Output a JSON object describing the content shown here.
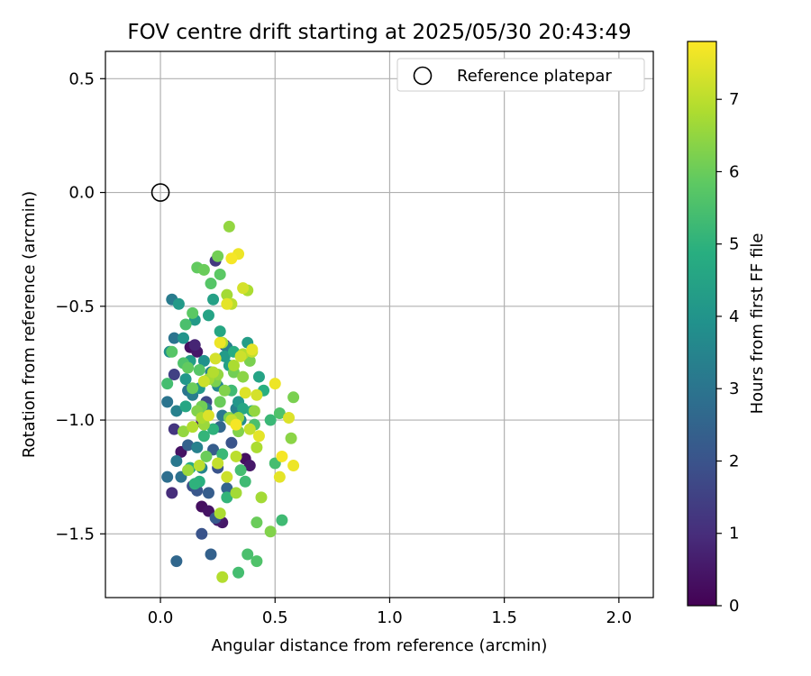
{
  "chart_data": {
    "type": "scatter",
    "title": "FOV centre drift starting at 2025/05/30 20:43:49",
    "xlabel": "Angular distance from reference (arcmin)",
    "ylabel": "Rotation from reference (arcmin)",
    "xlim": [
      -0.24,
      2.15
    ],
    "ylim": [
      -1.78,
      0.62
    ],
    "xticks": [
      0.0,
      0.5,
      1.0,
      1.5,
      2.0
    ],
    "xtick_labels": [
      "0.0",
      "0.5",
      "1.0",
      "1.5",
      "2.0"
    ],
    "yticks": [
      0.5,
      0.0,
      -0.5,
      -1.0,
      -1.5
    ],
    "ytick_labels": [
      "0.5",
      "0.0",
      "−0.5",
      "−1.0",
      "−1.5"
    ],
    "grid": true,
    "legend": {
      "position": "top-right",
      "entries": [
        "Reference platepar"
      ]
    },
    "reference_point": {
      "x": 0.0,
      "y": 0.0
    },
    "colorbar": {
      "label": "Hours from first FF file",
      "colormap": "viridis",
      "range": [
        0,
        7.8
      ],
      "ticks": [
        0,
        1,
        2,
        3,
        4,
        5,
        6,
        7
      ],
      "tick_labels": [
        "0",
        "1",
        "2",
        "3",
        "4",
        "5",
        "6",
        "7"
      ]
    },
    "points": [
      [
        0.13,
        -0.68,
        0.3
      ],
      [
        0.16,
        -0.7,
        0.5
      ],
      [
        0.18,
        -1.01,
        0.6
      ],
      [
        0.18,
        -1.38,
        0.3
      ],
      [
        0.21,
        -1.4,
        0.4
      ],
      [
        0.25,
        -1.44,
        0.6
      ],
      [
        0.27,
        -1.45,
        0.5
      ],
      [
        0.09,
        -1.14,
        0.4
      ],
      [
        0.05,
        -1.32,
        1.0
      ],
      [
        0.06,
        -1.04,
        1.2
      ],
      [
        0.15,
        -0.67,
        0.8
      ],
      [
        0.28,
        -0.67,
        0.9
      ],
      [
        0.37,
        -1.17,
        0.3
      ],
      [
        0.39,
        -1.2,
        0.5
      ],
      [
        0.24,
        -0.3,
        1.3
      ],
      [
        0.07,
        -1.62,
        2.6
      ],
      [
        0.18,
        -1.5,
        2.0
      ],
      [
        0.22,
        -1.59,
        2.4
      ],
      [
        0.24,
        -1.43,
        2.2
      ],
      [
        0.06,
        -0.8,
        1.5
      ],
      [
        0.14,
        -1.29,
        1.9
      ],
      [
        0.16,
        -1.31,
        2.1
      ],
      [
        0.21,
        -1.32,
        2.3
      ],
      [
        0.25,
        -1.21,
        2.0
      ],
      [
        0.29,
        -1.3,
        2.5
      ],
      [
        0.31,
        -1.1,
        2.0
      ],
      [
        0.2,
        -0.92,
        1.7
      ],
      [
        0.23,
        -1.13,
        2.3
      ],
      [
        0.26,
        -1.03,
        2.6
      ],
      [
        0.12,
        -1.11,
        2.4
      ],
      [
        0.09,
        -1.25,
        2.9
      ],
      [
        0.03,
        -1.25,
        2.8
      ],
      [
        0.03,
        -0.92,
        3.0
      ],
      [
        0.07,
        -1.18,
        3.1
      ],
      [
        0.05,
        -0.47,
        3.2
      ],
      [
        0.06,
        -0.64,
        3.0
      ],
      [
        0.12,
        -0.87,
        3.0
      ],
      [
        0.14,
        -0.89,
        3.3
      ],
      [
        0.16,
        -1.12,
        3.4
      ],
      [
        0.18,
        -1.21,
        3.5
      ],
      [
        0.2,
        -0.95,
        3.2
      ],
      [
        0.22,
        -0.79,
        3.4
      ],
      [
        0.25,
        -0.85,
        3.6
      ],
      [
        0.27,
        -0.98,
        3.1
      ],
      [
        0.29,
        -0.68,
        3.3
      ],
      [
        0.33,
        -0.95,
        3.4
      ],
      [
        0.35,
        -1.0,
        3.7
      ],
      [
        0.07,
        -0.96,
        3.4
      ],
      [
        0.04,
        -0.7,
        3.8
      ],
      [
        0.08,
        -0.49,
        4.2
      ],
      [
        0.1,
        -0.64,
        4.0
      ],
      [
        0.11,
        -0.82,
        4.1
      ],
      [
        0.13,
        -0.74,
        4.3
      ],
      [
        0.15,
        -0.56,
        4.2
      ],
      [
        0.17,
        -0.86,
        4.1
      ],
      [
        0.19,
        -0.74,
        3.9
      ],
      [
        0.21,
        -0.54,
        4.5
      ],
      [
        0.23,
        -0.47,
        4.4
      ],
      [
        0.26,
        -0.61,
        4.6
      ],
      [
        0.28,
        -0.72,
        4.2
      ],
      [
        0.3,
        -0.76,
        4.4
      ],
      [
        0.32,
        -0.7,
        4.8
      ],
      [
        0.34,
        -0.92,
        4.1
      ],
      [
        0.36,
        -0.95,
        4.6
      ],
      [
        0.38,
        -0.66,
        4.3
      ],
      [
        0.4,
        -0.96,
        4.7
      ],
      [
        0.43,
        -0.81,
        4.5
      ],
      [
        0.45,
        -0.87,
        4.9
      ],
      [
        0.11,
        -0.94,
        4.6
      ],
      [
        0.13,
        -1.21,
        4.8
      ],
      [
        0.15,
        -1.28,
        5.0
      ],
      [
        0.17,
        -1.27,
        4.9
      ],
      [
        0.19,
        -1.07,
        5.1
      ],
      [
        0.23,
        -1.04,
        5.0
      ],
      [
        0.27,
        -1.15,
        5.2
      ],
      [
        0.29,
        -1.34,
        5.1
      ],
      [
        0.31,
        -0.87,
        5.3
      ],
      [
        0.35,
        -1.22,
        5.4
      ],
      [
        0.37,
        -1.27,
        5.3
      ],
      [
        0.41,
        -1.02,
        5.5
      ],
      [
        0.48,
        -1.0,
        5.2
      ],
      [
        0.5,
        -1.19,
        5.4
      ],
      [
        0.52,
        -0.97,
        5.6
      ],
      [
        0.53,
        -1.44,
        5.3
      ],
      [
        0.38,
        -1.59,
        5.5
      ],
      [
        0.34,
        -1.67,
        5.4
      ],
      [
        0.42,
        -1.62,
        5.6
      ],
      [
        0.03,
        -0.84,
        5.4
      ],
      [
        0.05,
        -0.7,
        5.7
      ],
      [
        0.11,
        -0.58,
        5.5
      ],
      [
        0.14,
        -0.53,
        5.8
      ],
      [
        0.16,
        -0.33,
        5.9
      ],
      [
        0.19,
        -0.34,
        6.0
      ],
      [
        0.22,
        -0.4,
        5.7
      ],
      [
        0.25,
        -0.28,
        6.1
      ],
      [
        0.26,
        -0.36,
        5.8
      ],
      [
        0.1,
        -0.75,
        5.6
      ],
      [
        0.12,
        -0.77,
        5.9
      ],
      [
        0.14,
        -0.86,
        6.0
      ],
      [
        0.17,
        -0.78,
        5.7
      ],
      [
        0.18,
        -0.94,
        6.1
      ],
      [
        0.2,
        -1.16,
        6.0
      ],
      [
        0.24,
        -0.83,
        6.2
      ],
      [
        0.26,
        -0.92,
        6.0
      ],
      [
        0.28,
        -0.87,
        6.3
      ],
      [
        0.3,
        -0.99,
        6.2
      ],
      [
        0.32,
        -0.79,
        6.1
      ],
      [
        0.34,
        -1.05,
        6.3
      ],
      [
        0.36,
        -0.81,
        6.4
      ],
      [
        0.39,
        -0.74,
        6.2
      ],
      [
        0.41,
        -0.96,
        6.5
      ],
      [
        0.42,
        -1.45,
        6.0
      ],
      [
        0.48,
        -1.49,
        6.3
      ],
      [
        0.58,
        -0.9,
        6.2
      ],
      [
        0.57,
        -1.08,
        6.4
      ],
      [
        0.1,
        -1.05,
        6.5
      ],
      [
        0.12,
        -1.22,
        6.6
      ],
      [
        0.16,
        -0.96,
        6.3
      ],
      [
        0.18,
        -0.99,
        6.8
      ],
      [
        0.19,
        -1.02,
        6.6
      ],
      [
        0.21,
        -0.82,
        6.7
      ],
      [
        0.23,
        -0.79,
        6.9
      ],
      [
        0.25,
        -0.8,
        6.5
      ],
      [
        0.27,
        -0.66,
        6.8
      ],
      [
        0.29,
        -0.45,
        6.7
      ],
      [
        0.3,
        -0.15,
        6.5
      ],
      [
        0.31,
        -0.49,
        7.0
      ],
      [
        0.32,
        -0.76,
        6.8
      ],
      [
        0.34,
        -0.99,
        6.6
      ],
      [
        0.36,
        -0.71,
        6.9
      ],
      [
        0.38,
        -0.43,
        6.8
      ],
      [
        0.4,
        -0.7,
        7.1
      ],
      [
        0.42,
        -1.12,
        6.8
      ],
      [
        0.44,
        -1.34,
        6.7
      ],
      [
        0.26,
        -1.41,
        6.8
      ],
      [
        0.27,
        -1.69,
        6.9
      ],
      [
        0.33,
        -1.32,
        6.7
      ],
      [
        0.14,
        -1.03,
        6.9
      ],
      [
        0.17,
        -1.2,
        7.0
      ],
      [
        0.25,
        -1.19,
        7.1
      ],
      [
        0.29,
        -1.25,
        7.2
      ],
      [
        0.31,
        -1.0,
        7.1
      ],
      [
        0.33,
        -1.16,
        7.0
      ],
      [
        0.35,
        -0.72,
        7.2
      ],
      [
        0.36,
        -0.42,
        7.3
      ],
      [
        0.37,
        -0.88,
        7.4
      ],
      [
        0.39,
        -1.04,
        7.1
      ],
      [
        0.42,
        -0.89,
        7.3
      ],
      [
        0.43,
        -1.07,
        7.5
      ],
      [
        0.5,
        -0.84,
        7.6
      ],
      [
        0.52,
        -1.25,
        7.5
      ],
      [
        0.53,
        -1.16,
        7.7
      ],
      [
        0.56,
        -0.99,
        7.4
      ],
      [
        0.58,
        -1.2,
        7.6
      ],
      [
        0.31,
        -0.29,
        7.7
      ],
      [
        0.34,
        -0.27,
        7.6
      ],
      [
        0.29,
        -0.49,
        7.5
      ],
      [
        0.24,
        -0.73,
        7.3
      ],
      [
        0.26,
        -0.66,
        7.6
      ],
      [
        0.21,
        -0.98,
        7.4
      ],
      [
        0.19,
        -0.83,
        7.2
      ],
      [
        0.33,
        -1.02,
        7.7
      ],
      [
        0.4,
        -0.69,
        7.5
      ]
    ]
  }
}
